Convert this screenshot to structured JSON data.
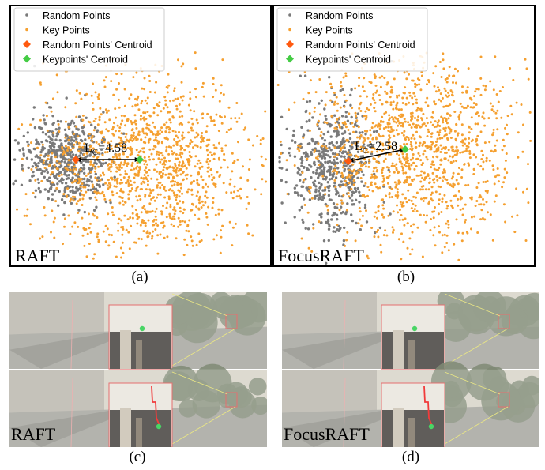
{
  "figure": {
    "captions": {
      "a": "(a)",
      "b": "(b)",
      "c": "(c)",
      "d": "(d)"
    },
    "legend": {
      "random_points": "Random Points",
      "key_points": "Key Points",
      "random_centroid": "Random Points' Centroid",
      "keypoint_centroid": "Keypoints' Centroid"
    },
    "panels": [
      {
        "id": "a",
        "method": "RAFT",
        "distance_main": "L",
        "distance_sub": "C",
        "distance_value": "=4.58"
      },
      {
        "id": "b",
        "method": "FocusRAFT",
        "distance_main": "L",
        "distance_sub": "C",
        "distance_value": "=2.58"
      }
    ],
    "photo_panels": [
      {
        "id": "c",
        "method": "RAFT"
      },
      {
        "id": "d",
        "method": "FocusRAFT"
      }
    ],
    "colors": {
      "random_points": "#7a7a7a",
      "key_points": "#f5a030",
      "random_centroid": "#ff5a10",
      "keypoint_centroid": "#44cc44",
      "zoom_frame": "#e05050",
      "track_line": "#ee1111",
      "track_point": "#22cc44"
    }
  },
  "chart_data": [
    {
      "type": "scatter",
      "panel": "a",
      "method": "RAFT",
      "series": [
        {
          "name": "Random Points",
          "color": "#7a7a7a",
          "distribution": "clustered left of center"
        },
        {
          "name": "Key Points",
          "color": "#f5a030",
          "distribution": "widely spread, right of random cluster"
        },
        {
          "name": "Random Points' Centroid",
          "marker": "diamond",
          "color": "#ff5a10"
        },
        {
          "name": "Keypoints' Centroid",
          "marker": "diamond",
          "color": "#44cc44"
        }
      ],
      "annotation": "LC=4.58",
      "legend": "top-left",
      "grid": false
    },
    {
      "type": "scatter",
      "panel": "b",
      "method": "FocusRAFT",
      "series": [
        {
          "name": "Random Points",
          "color": "#7a7a7a",
          "distribution": "clustered left of center"
        },
        {
          "name": "Key Points",
          "color": "#f5a030",
          "distribution": "widely spread, overlapping random cluster"
        },
        {
          "name": "Random Points' Centroid",
          "marker": "diamond",
          "color": "#ff5a10"
        },
        {
          "name": "Keypoints' Centroid",
          "marker": "diamond",
          "color": "#44cc44"
        }
      ],
      "annotation": "LC=2.58",
      "legend": "top-left",
      "grid": false
    }
  ]
}
